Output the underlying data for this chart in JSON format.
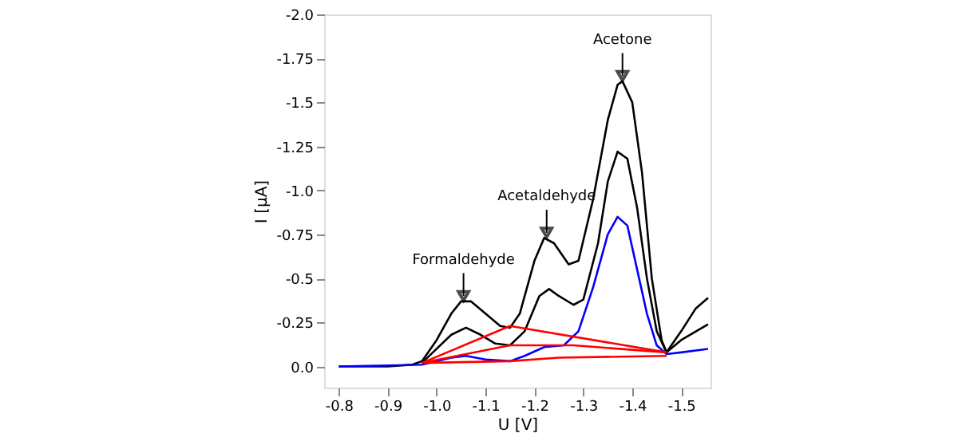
{
  "chart_data": {
    "type": "line",
    "xlabel": "U [V]",
    "ylabel": "I [µA]",
    "xlim": [
      -0.77,
      -1.56
    ],
    "ylim": [
      0.12,
      -2.0
    ],
    "xticks": [
      -0.8,
      -0.9,
      {
        "value": -1.0,
        "label": "-1.0"
      },
      -1.1,
      -1.2,
      -1.3,
      -1.4,
      -1.5
    ],
    "yticks": [
      {
        "value": 0,
        "label": "0.0"
      },
      -0.25,
      -0.5,
      -0.75,
      {
        "value": -1.0,
        "label": "-1.0"
      },
      -1.25,
      -1.5,
      -1.75,
      {
        "value": -2.0,
        "label": "-2.0"
      }
    ],
    "grid": false,
    "line_style": "solid",
    "series": [
      {
        "color": "#000000",
        "x": [
          -0.8,
          -0.9,
          -0.95,
          -0.97,
          -1.0,
          -1.03,
          -1.05,
          -1.07,
          -1.1,
          -1.13,
          -1.15,
          -1.17,
          -1.2,
          -1.22,
          -1.24,
          -1.27,
          -1.29,
          -1.32,
          -1.35,
          -1.37,
          -1.38,
          -1.4,
          -1.42,
          -1.44,
          -1.46,
          -1.47,
          -1.5,
          -1.53,
          -1.555
        ],
        "values": [
          0,
          0,
          -0.01,
          -0.03,
          -0.15,
          -0.3,
          -0.37,
          -0.37,
          -0.3,
          -0.23,
          -0.22,
          -0.3,
          -0.6,
          -0.73,
          -0.7,
          -0.58,
          -0.6,
          -0.95,
          -1.4,
          -1.6,
          -1.62,
          -1.5,
          -1.1,
          -0.5,
          -0.15,
          -0.08,
          -0.2,
          -0.33,
          -0.39
        ]
      },
      {
        "color": "#000000",
        "x": [
          -0.97,
          -1.0,
          -1.03,
          -1.06,
          -1.09,
          -1.12,
          -1.15,
          -1.18,
          -1.21,
          -1.23,
          -1.25,
          -1.28,
          -1.3,
          -1.33,
          -1.35,
          -1.37,
          -1.39,
          -1.41,
          -1.43,
          -1.45,
          -1.47,
          -1.5,
          -1.555
        ],
        "values": [
          -0.02,
          -0.1,
          -0.18,
          -0.22,
          -0.18,
          -0.13,
          -0.12,
          -0.2,
          -0.4,
          -0.44,
          -0.4,
          -0.35,
          -0.38,
          -0.7,
          -1.05,
          -1.22,
          -1.18,
          -0.9,
          -0.5,
          -0.2,
          -0.08,
          -0.15,
          -0.24
        ]
      },
      {
        "color": "#0000ff",
        "x": [
          -0.8,
          -0.97,
          -1.03,
          -1.06,
          -1.1,
          -1.15,
          -1.18,
          -1.22,
          -1.26,
          -1.29,
          -1.32,
          -1.35,
          -1.37,
          -1.39,
          -1.41,
          -1.43,
          -1.45,
          -1.47,
          -1.5,
          -1.555
        ],
        "values": [
          0,
          -0.01,
          -0.05,
          -0.06,
          -0.04,
          -0.03,
          -0.06,
          -0.11,
          -0.12,
          -0.2,
          -0.45,
          -0.75,
          -0.85,
          -0.8,
          -0.55,
          -0.3,
          -0.12,
          -0.07,
          -0.08,
          -0.1
        ]
      },
      {
        "color": "#ff0000",
        "x": [
          -0.97,
          -1.15,
          -1.47
        ],
        "values": [
          -0.02,
          -0.23,
          -0.08
        ]
      },
      {
        "color": "#ff0000",
        "x": [
          -0.97,
          -1.15,
          -1.28,
          -1.47
        ],
        "values": [
          -0.02,
          -0.12,
          -0.12,
          -0.08
        ]
      },
      {
        "color": "#ff0000",
        "x": [
          -0.97,
          -1.15,
          -1.25,
          -1.47
        ],
        "values": [
          -0.02,
          -0.03,
          -0.05,
          -0.06
        ]
      }
    ],
    "annotations": [
      {
        "text": "Formaldehyde",
        "x": -1.055,
        "y": -0.38
      },
      {
        "text": "Acetaldehyde",
        "x": -1.225,
        "y": -0.74
      },
      {
        "text": "Acetone",
        "x": -1.38,
        "y": -1.63
      }
    ]
  }
}
